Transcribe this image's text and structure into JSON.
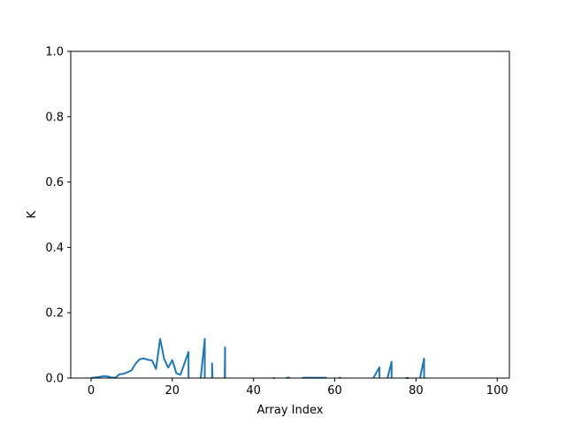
{
  "chart_data": {
    "type": "line",
    "title": "",
    "xlabel": "Array Index",
    "ylabel": "K",
    "xlim": [
      -5,
      103
    ],
    "ylim": [
      0,
      1
    ],
    "xticks": [
      0,
      20,
      40,
      60,
      80,
      100
    ],
    "xtick_labels": [
      "0",
      "20",
      "40",
      "60",
      "80",
      "100"
    ],
    "yticks": [
      0,
      0.2,
      0.4,
      0.6,
      0.8,
      1.0
    ],
    "ytick_labels": [
      "0.0",
      "0.2",
      "0.4",
      "0.6",
      "0.8",
      "1.0"
    ],
    "grid": false,
    "line_color": "#1f77b4",
    "series": [
      {
        "segments": [
          [
            [
              0,
              0.0
            ],
            [
              1,
              0.002
            ],
            [
              2,
              0.003
            ],
            [
              3,
              0.006
            ],
            [
              4,
              0.005
            ],
            [
              5,
              0.002
            ],
            [
              6,
              0.001
            ],
            [
              7,
              0.012
            ],
            [
              8,
              0.013
            ],
            [
              9,
              0.018
            ],
            [
              10,
              0.024
            ],
            [
              11,
              0.045
            ],
            [
              12,
              0.058
            ],
            [
              13,
              0.06
            ],
            [
              14,
              0.056
            ],
            [
              15,
              0.054
            ],
            [
              16,
              0.028
            ],
            [
              17,
              0.12
            ],
            [
              18,
              0.058
            ],
            [
              19,
              0.032
            ],
            [
              20,
              0.055
            ],
            [
              21,
              0.015
            ],
            [
              22,
              0.01
            ],
            [
              23,
              0.045
            ],
            [
              24,
              0.08
            ],
            [
              24,
              0.0
            ]
          ],
          [
            [
              27,
              0.0
            ],
            [
              28,
              0.12
            ],
            [
              28,
              0.0
            ]
          ],
          [
            [
              29.8,
              0.0
            ],
            [
              29.8,
              0.045
            ],
            [
              29.9,
              0.0
            ]
          ],
          [
            [
              32.9,
              0.0
            ],
            [
              33,
              0.094
            ],
            [
              33,
              0.0
            ]
          ],
          [
            [
              44.8,
              0.0
            ],
            [
              45.2,
              0.0
            ]
          ],
          [
            [
              48,
              0.001
            ],
            [
              49,
              0.001
            ]
          ],
          [
            [
              52,
              0.001
            ],
            [
              53,
              0.001
            ],
            [
              54,
              0.001
            ],
            [
              55,
              0.001
            ],
            [
              56,
              0.001
            ],
            [
              57,
              0.001
            ],
            [
              58,
              0.001
            ]
          ],
          [
            [
              61,
              0.001
            ],
            [
              61.5,
              0.001
            ]
          ],
          [
            [
              69.5,
              0.0
            ],
            [
              71,
              0.033
            ],
            [
              71,
              0.0
            ]
          ],
          [
            [
              73,
              0.0
            ],
            [
              74,
              0.05
            ],
            [
              74,
              0.0
            ]
          ],
          [
            [
              77.5,
              0.0
            ],
            [
              78.2,
              0.0
            ]
          ],
          [
            [
              81,
              0.0
            ],
            [
              82,
              0.06
            ],
            [
              82,
              0.0
            ]
          ]
        ]
      }
    ]
  }
}
